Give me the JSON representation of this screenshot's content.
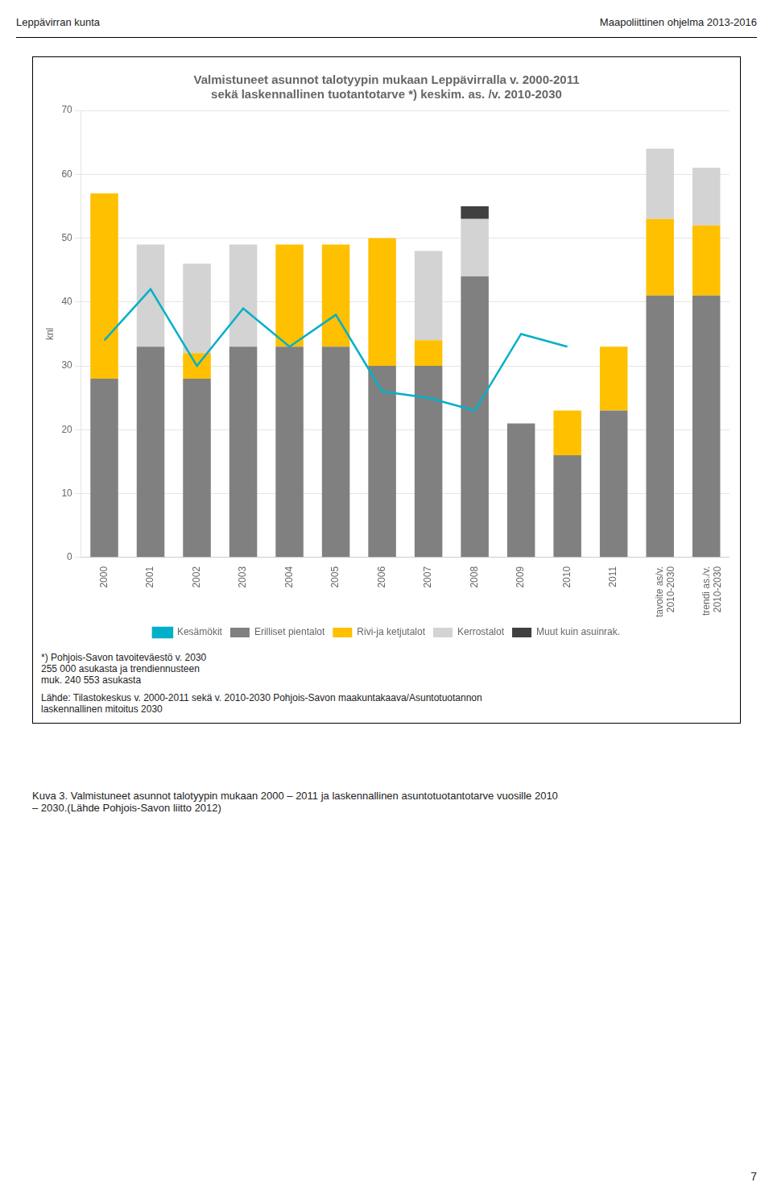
{
  "page_header_left": "Leppävirran kunta",
  "page_header_right": "Maapoliittinen ohjelma 2013-2016",
  "figure_caption": "Kuva 3.  Valmistuneet asunnot talotyypin mukaan 2000 – 2011 ja laskennallinen asuntotuotantotarve vuosille 2010\n– 2030.(Lähde Pohjois-Savon liitto 2012)",
  "page_number": 7,
  "chart_data": {
    "type": "bar",
    "title": [
      "Valmistuneet asunnot talotyypin mukaan Leppävirralla v. 2000-2011",
      "sekä laskennallinen tuotantotarve *) keskim. as. /v. 2010-2030"
    ],
    "ylabel": "knl",
    "note": "*) Pohjois-Savon tavoiteväestö  v. 2030\n255 000 asukasta ja trendiennusteen\nmuk. 240 553 asukasta",
    "source": [
      "Lähde: Tilastokeskus v. 2000-2011 sekä v. 2010-2030 Pohjois-Savon maakuntakaava/Asuntotuotannon",
      "laskennallinen mitoitus 2030"
    ],
    "categories": [
      "2000",
      "2001",
      "2002",
      "2003",
      "2004",
      "2005",
      "2006",
      "2007",
      "2008",
      "2009",
      "2010",
      "2011",
      "tavoite as/v.\n2010-2030",
      "trendi as./v.\n2010-2030"
    ],
    "series": [
      {
        "name": "Erilliset pientalot",
        "type": "bar",
        "color": "#808080",
        "values": [
          28,
          33,
          28,
          33,
          33,
          33,
          30,
          30,
          44,
          21,
          16,
          23,
          41,
          41
        ]
      },
      {
        "name": "Rivi-ja ketjutalot",
        "type": "bar",
        "color": "#FFC000",
        "values": [
          29,
          0,
          4,
          0,
          16,
          16,
          20,
          4,
          0,
          0,
          7,
          10,
          12,
          11
        ]
      },
      {
        "name": "Kerrostalot",
        "type": "bar",
        "color": "#D3D3D3",
        "values": [
          0,
          16,
          14,
          16,
          0,
          0,
          0,
          14,
          9,
          0,
          0,
          0,
          11,
          9
        ]
      },
      {
        "name": "Muut kuin asuinrak.",
        "type": "bar",
        "color": "#404040",
        "values": [
          0,
          0,
          0,
          0,
          0,
          0,
          0,
          0,
          2,
          0,
          0,
          0,
          0,
          0
        ]
      },
      {
        "name": "Kesämökit",
        "type": "line",
        "color": "#00B0C8",
        "values": [
          34,
          42,
          30,
          39,
          33,
          38,
          26,
          25,
          23,
          35,
          33,
          null,
          null,
          null
        ]
      }
    ],
    "stacked": true,
    "ylim": [
      0,
      70
    ],
    "yticks": [
      0,
      10,
      20,
      30,
      40,
      50,
      60,
      70
    ],
    "grid": true,
    "legend": "bottom"
  }
}
